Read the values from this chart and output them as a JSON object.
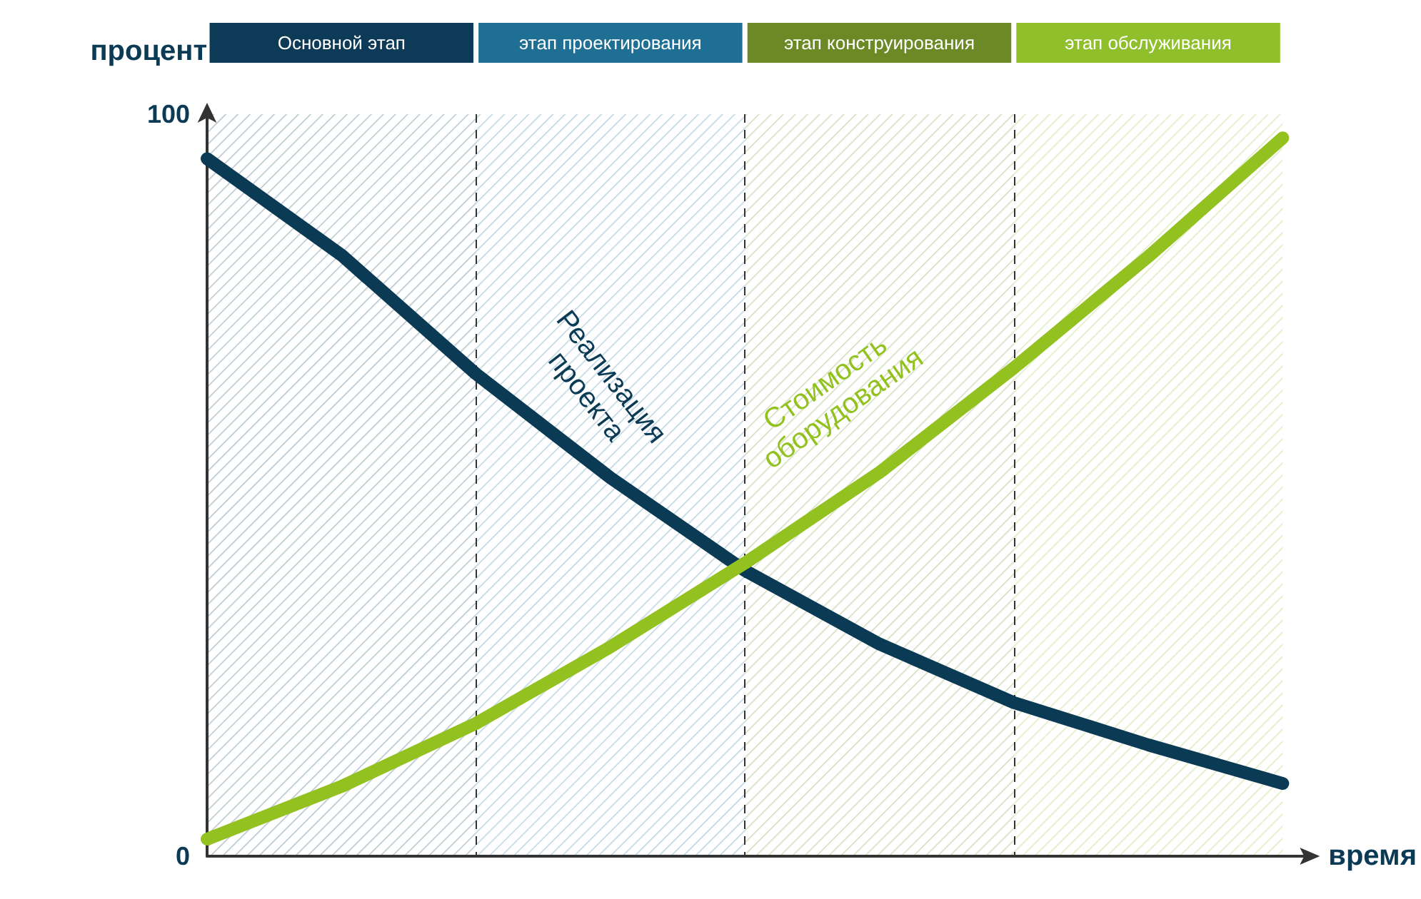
{
  "chart_data": {
    "type": "line",
    "xlabel": "время",
    "ylabel": "процент",
    "categories": [
      null,
      null,
      null,
      null,
      null,
      null,
      null,
      null,
      null
    ],
    "ylim": [
      0,
      100
    ],
    "yticks": [
      0,
      100
    ],
    "tick_labels": "y",
    "series": [
      {
        "name": "Реализация проекта",
        "color": "#0b3a55",
        "values": [
          94,
          81,
          65,
          51,
          38.5,
          28.6,
          20.7,
          15,
          9.8
        ]
      },
      {
        "name": "Стоимость оборудования",
        "color": "#93c11f",
        "values": [
          2.3,
          9.4,
          17.9,
          28.2,
          39.5,
          51.7,
          65.8,
          80.8,
          96.8
        ]
      }
    ],
    "annotations": [
      "Основной этап",
      "этап проектирования",
      "этап конструирования",
      "этап обслуживания"
    ],
    "marker": "none",
    "line_style": "solid",
    "grid": "x",
    "legend": false
  }
}
